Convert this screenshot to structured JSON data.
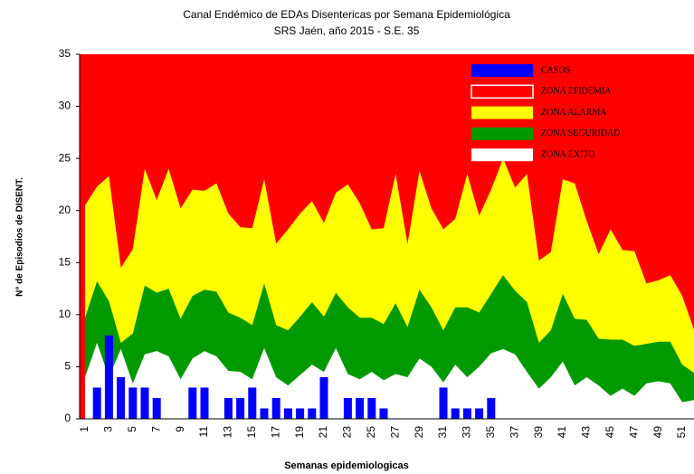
{
  "chart_data": {
    "type": "area",
    "title": "Canal Endémico de EDAs Disentericas por Semana Epidemiológica",
    "subtitle": "SRS Jaén, año 2015 - S.E.   35",
    "x_label": "Semanas epidemiologicas",
    "y_label": "N° de Episodios de DISENT.",
    "categories": [
      1,
      null,
      3,
      null,
      5,
      null,
      7,
      null,
      9,
      null,
      11,
      null,
      13,
      null,
      15,
      null,
      17,
      null,
      19,
      null,
      21,
      null,
      23,
      null,
      25,
      null,
      27,
      null,
      29,
      null,
      31,
      null,
      33,
      null,
      35,
      null,
      37,
      null,
      39,
      null,
      41,
      null,
      43,
      null,
      45,
      null,
      47,
      null,
      49,
      null,
      51,
      null
    ],
    "ylim": [
      0,
      35
    ],
    "yticks": [
      0,
      5,
      10,
      15,
      20,
      25,
      30,
      35
    ],
    "bars": {
      "name": "CASOS",
      "color": "#0000ff",
      "values": [
        0,
        3,
        8,
        4,
        3,
        3,
        2,
        0,
        0,
        3,
        3,
        0,
        2,
        2,
        3,
        1,
        2,
        1,
        1,
        1,
        4,
        0,
        2,
        2,
        2,
        1,
        0,
        0,
        0,
        0,
        3,
        1,
        1,
        1,
        2,
        null,
        null,
        null,
        null,
        null,
        null,
        null,
        null,
        null,
        null,
        null,
        null,
        null,
        null,
        null,
        null,
        null
      ]
    },
    "zones": [
      {
        "name": "ZONA EPIDEMIA",
        "color": "#ff0000"
      },
      {
        "name": "ZONA ALARMA",
        "color": "#ffff00",
        "values": [
          20.5,
          22.3,
          23.3,
          14.5,
          16.3,
          24,
          21,
          24,
          20.2,
          22,
          21.9,
          22.6,
          19.7,
          18.4,
          18.3,
          23,
          16.8,
          18.2,
          19.7,
          20.9,
          18.8,
          21.7,
          22.5,
          20.7,
          18.2,
          18.3,
          23.5,
          16.8,
          23.8,
          20.2,
          18.2,
          19.2,
          23.5,
          19.5,
          22,
          25,
          22.2,
          23.5,
          15.2,
          16,
          23,
          22.6,
          19,
          15.8,
          18.2,
          16.2,
          16.1,
          13,
          13.3,
          13.8,
          11.8,
          8.5
        ]
      },
      {
        "name": "ZONA SEGURIDAD",
        "color": "#009900",
        "values": [
          9.7,
          13.2,
          11.3,
          7.3,
          8.2,
          12.8,
          12.1,
          12.5,
          9.6,
          11.8,
          12.4,
          12.2,
          10.2,
          9.7,
          9,
          13,
          9,
          8.5,
          9.8,
          11.2,
          9.8,
          12.1,
          10.7,
          9.7,
          9.7,
          9.1,
          11.1,
          8.8,
          12.4,
          10.7,
          8.5,
          10.7,
          10.7,
          10.2,
          12,
          13.8,
          12.3,
          11.2,
          7.3,
          8.5,
          12,
          9.6,
          9.5,
          7.7,
          7.6,
          7.6,
          7,
          7.2,
          7.4,
          7.4,
          5.2,
          4.4
        ]
      },
      {
        "name": "ZONA EXITO",
        "color": "#ffffff",
        "values": [
          4,
          7.3,
          4,
          6.7,
          3.4,
          6.2,
          6.5,
          6,
          3.8,
          5.8,
          6.5,
          6,
          4.6,
          4.5,
          3.8,
          6.8,
          4,
          3.2,
          4.2,
          5.2,
          4.5,
          6.8,
          4.3,
          3.8,
          4.5,
          3.7,
          4.3,
          4,
          5.8,
          5,
          3.5,
          5.2,
          4,
          5,
          6.3,
          6.7,
          6.2,
          4.5,
          2.9,
          4,
          5.5,
          3.2,
          4,
          3.2,
          2.2,
          2.9,
          2.2,
          3.4,
          3.6,
          3.4,
          1.6,
          1.8
        ]
      }
    ]
  }
}
